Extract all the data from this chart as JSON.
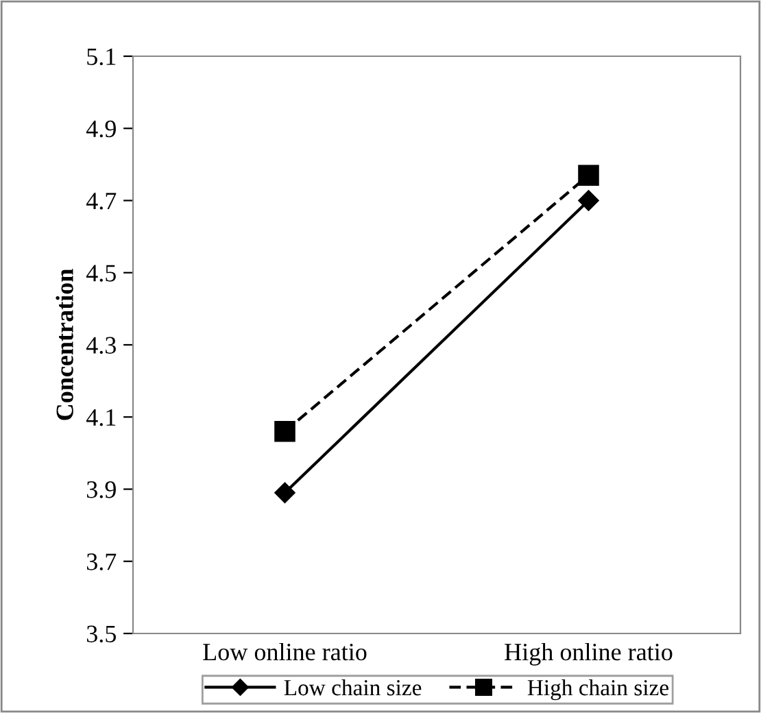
{
  "chart_data": {
    "type": "line",
    "ylabel": "Concentration",
    "categories": [
      "Low online ratio",
      "High online ratio"
    ],
    "series": [
      {
        "name": "Low chain size",
        "color": "#000000",
        "values": [
          3.89,
          4.7
        ],
        "marker": "diamond",
        "line_style": "solid"
      },
      {
        "name": "High chain size",
        "color": "#000000",
        "values": [
          4.06,
          4.77
        ],
        "marker": "square",
        "line_style": "dashed"
      }
    ],
    "ylim": [
      3.5,
      5.1
    ],
    "yticks": [
      {
        "value": 3.5,
        "label": "3.5"
      },
      {
        "value": 3.7,
        "label": "3.7"
      },
      {
        "value": 3.9,
        "label": "3.9"
      },
      {
        "value": 4.1,
        "label": "4.1"
      },
      {
        "value": 4.3,
        "label": "4.3"
      },
      {
        "value": 4.5,
        "label": "4.5"
      },
      {
        "value": 4.7,
        "label": "4.7"
      },
      {
        "value": 4.9,
        "label": "4.9"
      },
      {
        "value": 5.1,
        "label": "5.1"
      }
    ],
    "grid": false,
    "legend": "bottom"
  }
}
